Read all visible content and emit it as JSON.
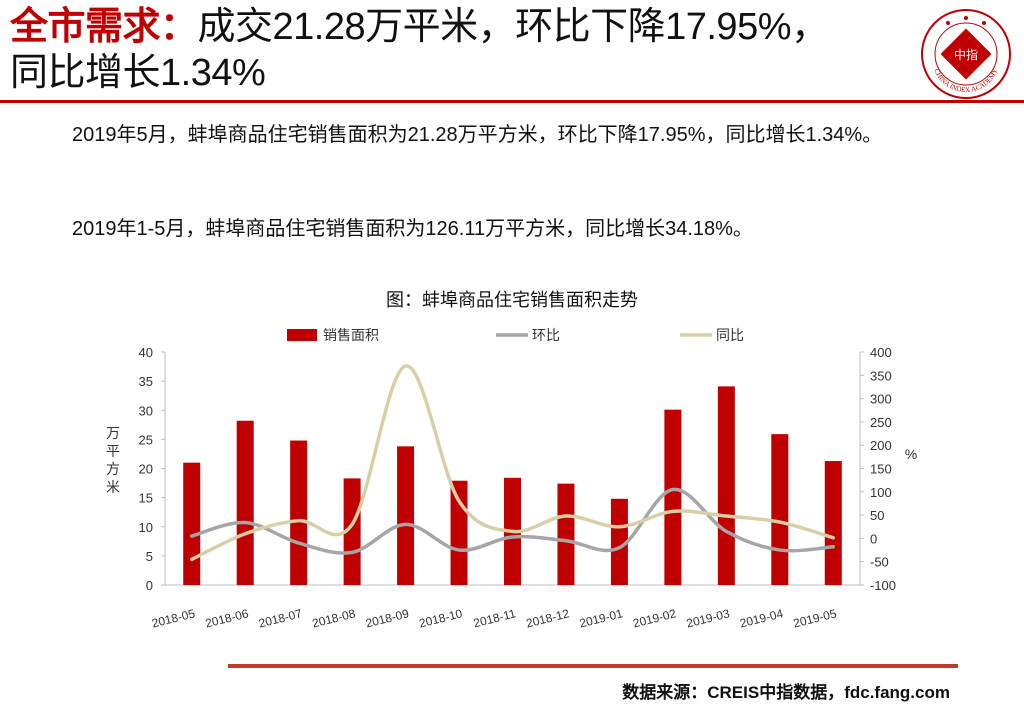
{
  "header": {
    "label": "全市需求：",
    "line1": "成交21.28万平米，环比下降17.95%，",
    "line2": "同比增长1.34%"
  },
  "logo": {
    "center_text": "中指",
    "ring_text": "CHINA INDEX ACADEMY"
  },
  "body": {
    "p1": "2019年5月，蚌埠商品住宅销售面积为21.28万平方米，环比下降17.95%，同比增长1.34%。",
    "p2": "2019年1-5月，蚌埠商品住宅销售面积为126.11万平方米，同比增长34.18%。"
  },
  "chart_title": "图：蚌埠商品住宅销售面积走势",
  "source": "数据来源：CREIS中指数据，fdc.fang.com",
  "colors": {
    "brand_red": "#c00000",
    "bar": "#c00000",
    "mom": "#a6a6a6",
    "yoy": "#d9cfa6",
    "rule": "#c0392b"
  },
  "chart_data": {
    "type": "bar",
    "categories": [
      "2018-05",
      "2018-06",
      "2018-07",
      "2018-08",
      "2018-09",
      "2018-10",
      "2018-11",
      "2018-12",
      "2019-01",
      "2019-02",
      "2019-03",
      "2019-04",
      "2019-05"
    ],
    "series": [
      {
        "name": "销售面积",
        "type": "bar",
        "axis": "left",
        "values": [
          21.0,
          28.2,
          24.8,
          18.3,
          23.8,
          17.9,
          18.4,
          17.4,
          14.8,
          30.1,
          34.1,
          25.9,
          21.28
        ]
      },
      {
        "name": "环比",
        "type": "line",
        "axis": "right",
        "values": [
          5,
          34,
          -10,
          -30,
          30,
          -25,
          3,
          -5,
          -20,
          105,
          15,
          -25,
          -17.95
        ]
      },
      {
        "name": "同比",
        "type": "line",
        "axis": "right",
        "values": [
          -45,
          10,
          38,
          30,
          370,
          80,
          15,
          48,
          25,
          58,
          48,
          35,
          1.34
        ]
      }
    ],
    "ylabel": "万平方米",
    "y2label": "%",
    "ylim": [
      0,
      40
    ],
    "yticks": [
      "0",
      "5",
      "10",
      "15",
      "20",
      "25",
      "30",
      "35",
      "40"
    ],
    "y2lim": [
      -100,
      400
    ],
    "y2ticks": [
      "-100",
      "-50",
      "0",
      "50",
      "100",
      "150",
      "200",
      "250",
      "300",
      "350",
      "400"
    ],
    "legend": "top",
    "grid": false
  }
}
